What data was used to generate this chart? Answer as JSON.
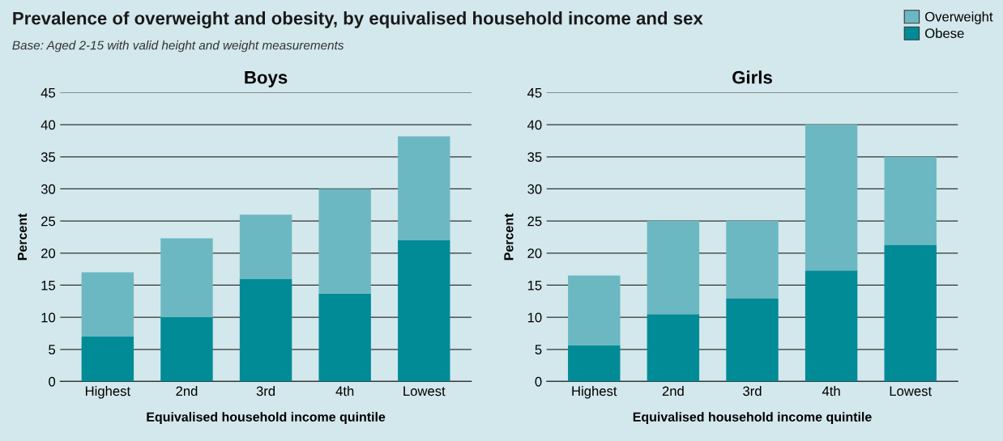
{
  "chart_data": [
    {
      "type": "other",
      "title": "Prevalence of overweight and obesity, by equivalised household income and sex",
      "subtitle": "Base: Aged 2-15 with valid height and weight measurements"
    },
    {
      "type": "bar",
      "title": "Boys",
      "categories": [
        "Highest",
        "2nd",
        "3rd",
        "4th",
        "Lowest"
      ],
      "stacked": true,
      "xlabel": "Equivalised household income quintile",
      "ylabel": "Percent",
      "ylim": [
        0,
        45
      ],
      "yticks": [
        0,
        5,
        10,
        15,
        20,
        25,
        30,
        35,
        40,
        45
      ],
      "grid": "y",
      "legend": "top right",
      "series": [
        {
          "name": "Obese",
          "color": "#008b96",
          "values": [
            7,
            10,
            16,
            13.7,
            22
          ]
        },
        {
          "name": "Overweight",
          "color": "#6bb8c2",
          "values": [
            10,
            12.3,
            10,
            16.3,
            16.2
          ]
        }
      ]
    },
    {
      "type": "bar",
      "title": "Girls",
      "categories": [
        "Highest",
        "2nd",
        "3rd",
        "4th",
        "Lowest"
      ],
      "stacked": true,
      "xlabel": "Equivalised household income quintile",
      "ylabel": "Percent",
      "ylim": [
        0,
        45
      ],
      "yticks": [
        0,
        5,
        10,
        15,
        20,
        25,
        30,
        35,
        40,
        45
      ],
      "grid": "y",
      "series": [
        {
          "color": "#008b96",
          "values": [
            5.6,
            10.5,
            12.9,
            17.3,
            21.3
          ]
        },
        {
          "color": "#6bb8c2",
          "values": [
            10.9,
            14.5,
            12.1,
            22.7,
            13.7
          ]
        }
      ]
    }
  ]
}
